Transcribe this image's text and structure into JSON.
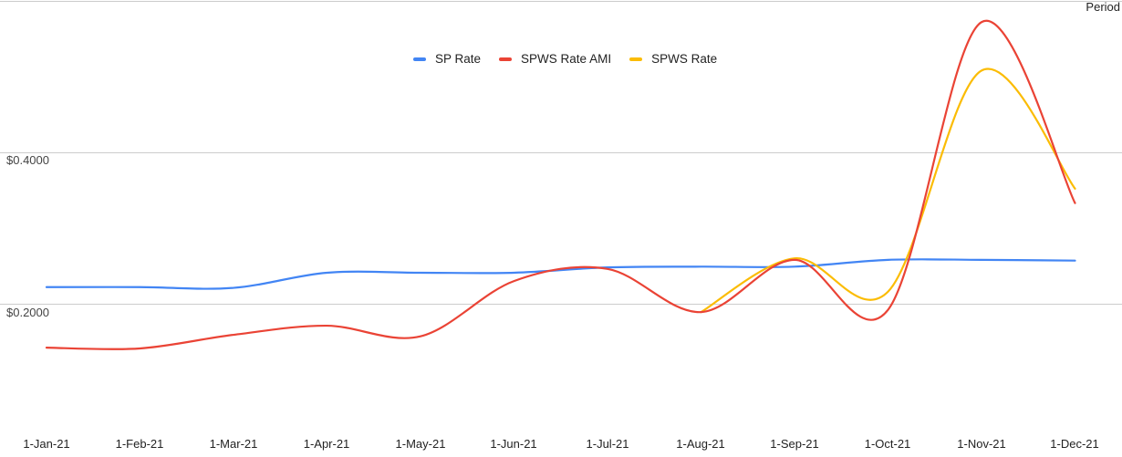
{
  "chart": {
    "axis_title_x": "Period",
    "y_tick_labels": [
      "$0.4000",
      "$0.2000"
    ],
    "legend": [
      {
        "label": "SP Rate",
        "color": "#4285F4"
      },
      {
        "label": "SPWS Rate AMI",
        "color": "#EA4335"
      },
      {
        "label": "SPWS Rate",
        "color": "#FBBC04"
      }
    ],
    "x_tick_labels": [
      "1-Jan-21",
      "1-Feb-21",
      "1-Mar-21",
      "1-Apr-21",
      "1-May-21",
      "1-Jun-21",
      "1-Jul-21",
      "1-Aug-21",
      "1-Sep-21",
      "1-Oct-21",
      "1-Nov-21",
      "1-Dec-21"
    ]
  },
  "chart_data": {
    "type": "line",
    "title": "",
    "xlabel": "Period",
    "ylabel": "",
    "categories": [
      "1-Jan-21",
      "1-Feb-21",
      "1-Mar-21",
      "1-Apr-21",
      "1-May-21",
      "1-Jun-21",
      "1-Jul-21",
      "1-Aug-21",
      "1-Sep-21",
      "1-Oct-21",
      "1-Nov-21",
      "1-Dec-21"
    ],
    "series": [
      {
        "name": "SP Rate",
        "color": "#4285F4",
        "values": [
          0.222,
          0.222,
          0.221,
          0.241,
          0.241,
          0.241,
          0.248,
          0.249,
          0.249,
          0.258,
          0.258,
          0.257
        ]
      },
      {
        "name": "SPWS Rate AMI",
        "color": "#EA4335",
        "values": [
          0.142,
          0.141,
          0.159,
          0.171,
          0.157,
          0.23,
          0.246,
          0.189,
          0.258,
          0.192,
          0.572,
          0.333
        ]
      },
      {
        "name": "SPWS Rate",
        "color": "#FBBC04",
        "values": [
          null,
          null,
          null,
          null,
          null,
          null,
          null,
          0.189,
          0.26,
          0.216,
          0.508,
          0.352
        ]
      }
    ],
    "y_ticks": [
      0.2,
      0.4
    ],
    "ylim": [
      0.04,
      0.6
    ],
    "grid": true,
    "legend_position": "top",
    "curve": "smooth"
  }
}
